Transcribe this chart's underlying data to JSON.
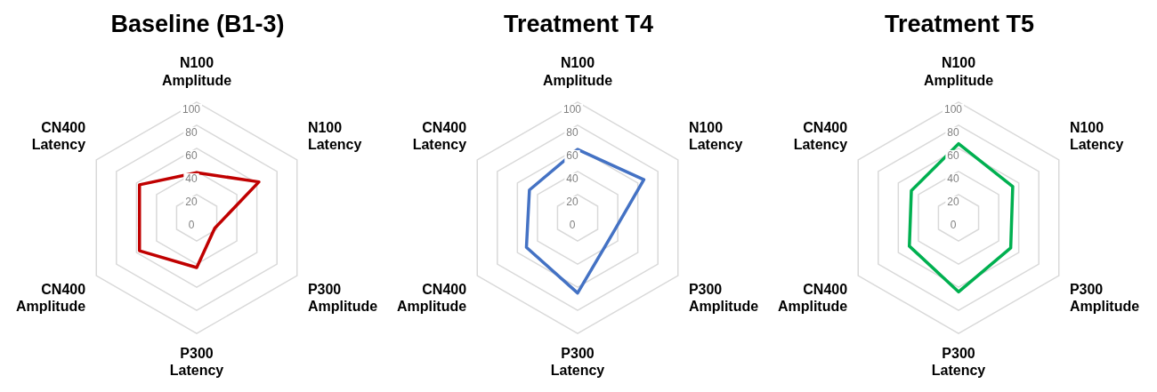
{
  "chart_data": [
    {
      "type": "radar",
      "title": "Baseline (B1-3)",
      "categories": [
        "N100 Amplitude",
        "N100 Latency",
        "P300 Amplitude",
        "P300 Latency",
        "CN400 Amplitude",
        "CN400 Latency"
      ],
      "series": [
        {
          "color": "#c00000",
          "values": [
            39,
            62,
            18,
            43,
            57,
            57
          ]
        }
      ],
      "ylim": [
        0,
        100
      ],
      "yticks": [
        0,
        20,
        40,
        60,
        80,
        100
      ],
      "grid": true,
      "marker": "none",
      "line_style": "solid"
    },
    {
      "type": "radar",
      "title": "Treatment T4",
      "categories": [
        "N100 Amplitude",
        "N100 Latency",
        "P300 Amplitude",
        "P300 Latency",
        "CN400 Amplitude",
        "CN400 Latency"
      ],
      "series": [
        {
          "color": "#4472c4",
          "values": [
            59,
            66,
            33,
            65,
            51,
            48
          ]
        }
      ],
      "ylim": [
        0,
        100
      ],
      "yticks": [
        0,
        20,
        40,
        60,
        80,
        100
      ],
      "grid": true,
      "marker": "none",
      "line_style": "solid"
    },
    {
      "type": "radar",
      "title": "Treatment T5",
      "categories": [
        "N100 Amplitude",
        "N100 Latency",
        "P300 Amplitude",
        "P300 Latency",
        "CN400 Amplitude",
        "CN400 Latency"
      ],
      "series": [
        {
          "color": "#00b050",
          "values": [
            64,
            54,
            52,
            64,
            49,
            47
          ]
        }
      ],
      "ylim": [
        0,
        100
      ],
      "yticks": [
        0,
        20,
        40,
        60,
        80,
        100
      ],
      "grid": true,
      "marker": "none",
      "line_style": "solid"
    }
  ]
}
